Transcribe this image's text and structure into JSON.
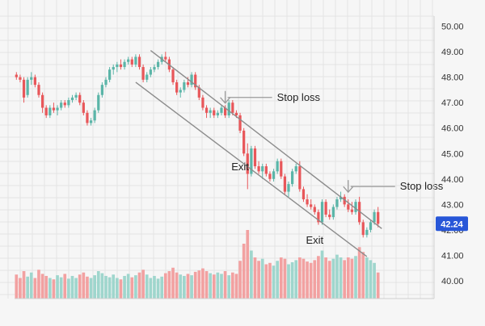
{
  "chart_data": {
    "type": "candlestick",
    "title": "",
    "xlabel": "",
    "ylabel": "",
    "ylim": [
      39.3,
      50.4
    ],
    "y_ticks": [
      "40.00",
      "41.00",
      "42.00",
      "43.00",
      "44.00",
      "45.00",
      "46.00",
      "47.00",
      "48.00",
      "49.00",
      "50.00"
    ],
    "grid": true,
    "colors": {
      "up": "#5bb5a8",
      "down": "#e8575a",
      "channel": "#8c8c8c",
      "price_tag": "#2756d8",
      "volume_up": "#9fd6cd",
      "volume_down": "#f2a1a1"
    },
    "current_price": {
      "label": "42.24",
      "value": 42.24
    },
    "candles": [
      [
        48.1,
        48.2,
        47.9,
        48.0
      ],
      [
        48.0,
        48.1,
        47.8,
        47.9
      ],
      [
        47.9,
        48.0,
        47.0,
        47.2
      ],
      [
        47.3,
        48.0,
        47.2,
        47.9
      ],
      [
        47.9,
        48.2,
        47.7,
        48.0
      ],
      [
        48.0,
        48.1,
        47.6,
        47.7
      ],
      [
        47.7,
        47.8,
        47.2,
        47.3
      ],
      [
        47.3,
        47.4,
        46.6,
        46.8
      ],
      [
        46.8,
        46.9,
        46.4,
        46.5
      ],
      [
        46.5,
        46.9,
        46.4,
        46.8
      ],
      [
        46.8,
        47.0,
        46.6,
        46.7
      ],
      [
        46.7,
        46.9,
        46.5,
        46.8
      ],
      [
        46.8,
        47.1,
        46.7,
        47.0
      ],
      [
        47.0,
        47.1,
        46.8,
        46.9
      ],
      [
        46.9,
        47.2,
        46.8,
        47.1
      ],
      [
        47.1,
        47.3,
        47.0,
        47.2
      ],
      [
        47.2,
        47.4,
        47.1,
        47.3
      ],
      [
        47.3,
        47.4,
        46.9,
        47.0
      ],
      [
        47.0,
        47.1,
        46.5,
        46.6
      ],
      [
        46.6,
        46.7,
        46.1,
        46.2
      ],
      [
        46.2,
        46.4,
        46.1,
        46.3
      ],
      [
        46.3,
        46.8,
        46.2,
        46.7
      ],
      [
        46.7,
        47.4,
        46.6,
        47.3
      ],
      [
        47.3,
        47.8,
        47.2,
        47.7
      ],
      [
        47.7,
        48.0,
        47.6,
        47.9
      ],
      [
        47.9,
        48.4,
        47.8,
        48.3
      ],
      [
        48.3,
        48.5,
        48.1,
        48.4
      ],
      [
        48.4,
        48.6,
        48.2,
        48.5
      ],
      [
        48.5,
        48.7,
        48.3,
        48.4
      ],
      [
        48.4,
        48.7,
        48.3,
        48.6
      ],
      [
        48.6,
        48.8,
        48.5,
        48.7
      ],
      [
        48.7,
        48.8,
        48.4,
        48.5
      ],
      [
        48.5,
        48.9,
        48.4,
        48.8
      ],
      [
        48.8,
        48.9,
        48.3,
        48.4
      ],
      [
        48.4,
        48.5,
        47.8,
        47.9
      ],
      [
        47.9,
        48.2,
        47.8,
        48.1
      ],
      [
        48.1,
        48.4,
        48.0,
        48.3
      ],
      [
        48.3,
        48.5,
        48.2,
        48.4
      ],
      [
        48.4,
        48.7,
        48.3,
        48.6
      ],
      [
        48.6,
        48.9,
        48.5,
        48.8
      ],
      [
        48.8,
        49.0,
        48.6,
        48.7
      ],
      [
        48.7,
        48.8,
        48.2,
        48.3
      ],
      [
        48.3,
        48.4,
        47.7,
        47.8
      ],
      [
        47.8,
        47.9,
        47.3,
        47.4
      ],
      [
        47.4,
        47.6,
        47.2,
        47.5
      ],
      [
        47.5,
        47.9,
        47.4,
        47.8
      ],
      [
        47.8,
        48.0,
        47.6,
        47.7
      ],
      [
        47.7,
        48.2,
        47.6,
        48.1
      ],
      [
        48.1,
        48.2,
        47.5,
        47.6
      ],
      [
        47.6,
        47.7,
        47.1,
        47.2
      ],
      [
        47.2,
        47.3,
        46.7,
        46.8
      ],
      [
        46.8,
        46.9,
        46.4,
        46.6
      ],
      [
        46.6,
        46.8,
        46.4,
        46.7
      ],
      [
        46.7,
        46.8,
        46.4,
        46.5
      ],
      [
        46.5,
        46.7,
        46.4,
        46.6
      ],
      [
        46.6,
        46.9,
        46.5,
        46.8
      ],
      [
        46.8,
        46.9,
        46.4,
        46.5
      ],
      [
        46.5,
        47.1,
        46.4,
        47.0
      ],
      [
        47.0,
        47.1,
        46.5,
        46.6
      ],
      [
        46.6,
        46.7,
        46.4,
        46.5
      ],
      [
        46.5,
        46.6,
        45.8,
        45.9
      ],
      [
        45.9,
        46.0,
        44.9,
        45.0
      ],
      [
        45.0,
        45.4,
        43.6,
        44.2
      ],
      [
        44.2,
        45.3,
        44.1,
        45.2
      ],
      [
        45.2,
        45.3,
        44.4,
        44.5
      ],
      [
        44.5,
        44.7,
        44.2,
        44.3
      ],
      [
        44.3,
        44.6,
        44.0,
        44.5
      ],
      [
        44.5,
        44.6,
        44.1,
        44.2
      ],
      [
        44.2,
        44.3,
        43.9,
        44.0
      ],
      [
        44.0,
        44.4,
        43.9,
        44.3
      ],
      [
        44.3,
        44.8,
        44.2,
        44.7
      ],
      [
        44.7,
        44.8,
        44.0,
        44.1
      ],
      [
        44.1,
        44.2,
        43.4,
        43.5
      ],
      [
        43.5,
        43.9,
        43.3,
        43.8
      ],
      [
        43.8,
        44.4,
        43.7,
        44.3
      ],
      [
        44.3,
        44.6,
        44.2,
        44.5
      ],
      [
        44.5,
        44.7,
        43.5,
        43.6
      ],
      [
        43.6,
        43.7,
        43.1,
        43.2
      ],
      [
        43.2,
        43.4,
        42.9,
        43.0
      ],
      [
        43.0,
        43.2,
        42.8,
        42.9
      ],
      [
        42.9,
        43.0,
        42.6,
        42.7
      ],
      [
        42.7,
        42.8,
        42.2,
        42.3
      ],
      [
        42.3,
        43.2,
        42.2,
        43.1
      ],
      [
        43.1,
        43.2,
        42.5,
        42.6
      ],
      [
        42.6,
        42.8,
        42.4,
        42.5
      ],
      [
        42.5,
        43.0,
        42.4,
        42.9
      ],
      [
        42.9,
        43.3,
        42.8,
        43.2
      ],
      [
        43.2,
        43.5,
        43.1,
        43.3
      ],
      [
        43.3,
        43.4,
        42.9,
        43.0
      ],
      [
        43.0,
        43.2,
        42.7,
        42.8
      ],
      [
        42.8,
        43.1,
        42.6,
        42.7
      ],
      [
        42.7,
        43.2,
        42.6,
        43.1
      ],
      [
        43.1,
        43.3,
        42.2,
        42.3
      ],
      [
        42.3,
        42.4,
        41.7,
        41.8
      ],
      [
        41.8,
        42.1,
        41.7,
        42.0
      ],
      [
        42.0,
        42.4,
        41.9,
        42.3
      ],
      [
        42.3,
        42.8,
        42.2,
        42.7
      ],
      [
        42.7,
        42.9,
        42.1,
        42.24
      ]
    ],
    "volumes": [
      0.35,
      0.3,
      0.4,
      0.32,
      0.38,
      0.3,
      0.42,
      0.36,
      0.33,
      0.3,
      0.28,
      0.34,
      0.31,
      0.36,
      0.29,
      0.33,
      0.3,
      0.35,
      0.38,
      0.32,
      0.3,
      0.34,
      0.4,
      0.37,
      0.33,
      0.31,
      0.35,
      0.3,
      0.28,
      0.33,
      0.36,
      0.31,
      0.34,
      0.38,
      0.42,
      0.35,
      0.3,
      0.33,
      0.29,
      0.32,
      0.37,
      0.4,
      0.45,
      0.38,
      0.35,
      0.33,
      0.36,
      0.34,
      0.39,
      0.41,
      0.44,
      0.4,
      0.37,
      0.35,
      0.38,
      0.36,
      0.4,
      0.34,
      0.38,
      0.36,
      0.55,
      0.8,
      1.0,
      0.7,
      0.6,
      0.55,
      0.58,
      0.5,
      0.52,
      0.48,
      0.55,
      0.6,
      0.58,
      0.5,
      0.53,
      0.56,
      0.6,
      0.58,
      0.54,
      0.52,
      0.56,
      0.62,
      0.7,
      0.6,
      0.55,
      0.58,
      0.64,
      0.6,
      0.56,
      0.6,
      0.58,
      0.62,
      0.75,
      0.68,
      0.6,
      0.56,
      0.52,
      0.38
    ],
    "channel_upper": {
      "from": {
        "index": 36,
        "value": 49.05
      },
      "to": {
        "index": 98,
        "value": 42.05
      }
    },
    "channel_lower": {
      "from": {
        "index": 32,
        "value": 47.8
      },
      "to": {
        "index": 94,
        "value": 40.95
      }
    },
    "annotations": [
      {
        "text": "Stop loss",
        "index": 56,
        "value": 46.95
      },
      {
        "text": "Stop loss",
        "index": 89,
        "value": 43.45
      },
      {
        "text": "Exit",
        "index": 60,
        "value": 44.35
      },
      {
        "text": "Exit",
        "index": 80,
        "value": 41.45
      }
    ]
  }
}
